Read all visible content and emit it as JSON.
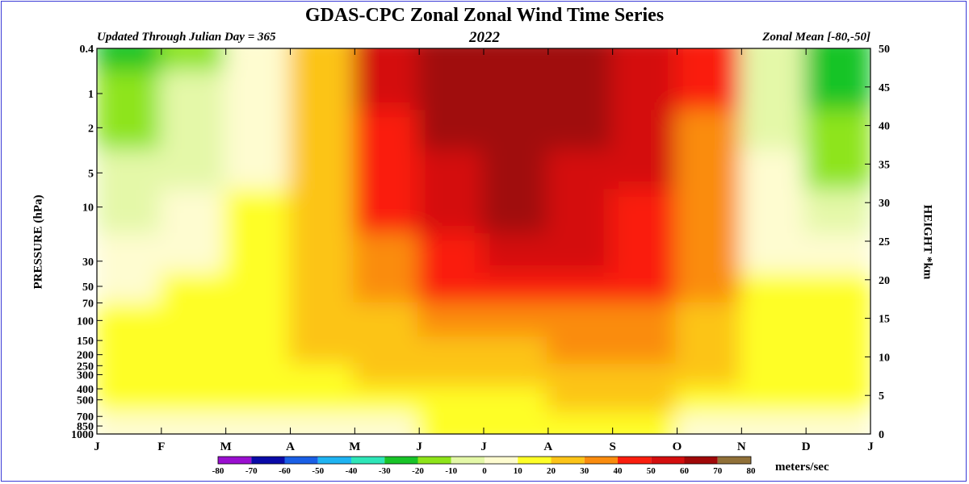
{
  "chart_data": {
    "type": "heatmap",
    "title": "GDAS-CPC Zonal Zonal Wind Time Series",
    "subtitle_left": "Updated Through Julian Day = 365",
    "subtitle_center": "2022",
    "subtitle_right": "Zonal Mean [-80,-50]",
    "ylabel": "PRESSURE (hPa)",
    "y2label": "HEIGHT *km",
    "x_ticks": [
      "J",
      "F",
      "M",
      "A",
      "M",
      "J",
      "J",
      "A",
      "S",
      "O",
      "N",
      "D",
      "J"
    ],
    "y_ticks_pressure": [
      "0.4",
      "1",
      "2",
      "5",
      "10",
      "30",
      "50",
      "70",
      "100",
      "150",
      "200",
      "250",
      "300",
      "400",
      "500",
      "700",
      "850",
      "1000"
    ],
    "y_ticks_height": [
      "50",
      "45",
      "40",
      "35",
      "30",
      "25",
      "20",
      "15",
      "10",
      "5",
      "0"
    ],
    "colorbar": {
      "label": "meters/sec",
      "ticks": [
        "-80",
        "-70",
        "-60",
        "-50",
        "-40",
        "-30",
        "-20",
        "-10",
        "0",
        "10",
        "20",
        "30",
        "40",
        "50",
        "60",
        "70",
        "80"
      ],
      "colors": [
        "#9a0fd0",
        "#0a0aa8",
        "#1a5fe6",
        "#1fb4f2",
        "#2ee6b8",
        "#18c428",
        "#8ee41a",
        "#e4f8a8",
        "#fefcd0",
        "#fefe28",
        "#fcc418",
        "#fa8c0e",
        "#fa1e0e",
        "#d40e0e",
        "#a00808",
        "#907038"
      ]
    },
    "months": [
      "Jan",
      "Feb",
      "Mar",
      "Apr",
      "May",
      "Jun",
      "Jul",
      "Aug",
      "Sep",
      "Oct",
      "Nov",
      "Dec"
    ],
    "levels_hpa": [
      0.4,
      1,
      2,
      5,
      10,
      30,
      50,
      100,
      200,
      300,
      500,
      850
    ],
    "values": [
      [
        -25,
        -12,
        3,
        28,
        55,
        65,
        65,
        62,
        55,
        40,
        -10,
        -25
      ],
      [
        -20,
        -8,
        5,
        25,
        50,
        60,
        65,
        62,
        55,
        40,
        -5,
        -22
      ],
      [
        -15,
        -5,
        5,
        25,
        48,
        60,
        65,
        60,
        52,
        38,
        -2,
        -18
      ],
      [
        -10,
        -3,
        8,
        25,
        45,
        58,
        62,
        58,
        50,
        36,
        0,
        -12
      ],
      [
        -5,
        0,
        10,
        25,
        42,
        55,
        60,
        55,
        48,
        35,
        3,
        -6
      ],
      [
        0,
        3,
        12,
        25,
        38,
        48,
        50,
        50,
        45,
        32,
        8,
        0
      ],
      [
        8,
        10,
        15,
        25,
        32,
        40,
        42,
        42,
        40,
        30,
        15,
        12
      ],
      [
        12,
        14,
        18,
        22,
        28,
        32,
        35,
        38,
        36,
        28,
        18,
        15
      ],
      [
        15,
        17,
        18,
        20,
        22,
        25,
        28,
        30,
        30,
        25,
        18,
        16
      ],
      [
        15,
        16,
        17,
        19,
        20,
        22,
        24,
        25,
        26,
        24,
        17,
        15
      ],
      [
        12,
        13,
        14,
        15,
        16,
        18,
        19,
        20,
        20,
        18,
        14,
        12
      ],
      [
        6,
        7,
        8,
        8,
        9,
        10,
        10,
        10,
        10,
        9,
        8,
        6
      ]
    ]
  }
}
